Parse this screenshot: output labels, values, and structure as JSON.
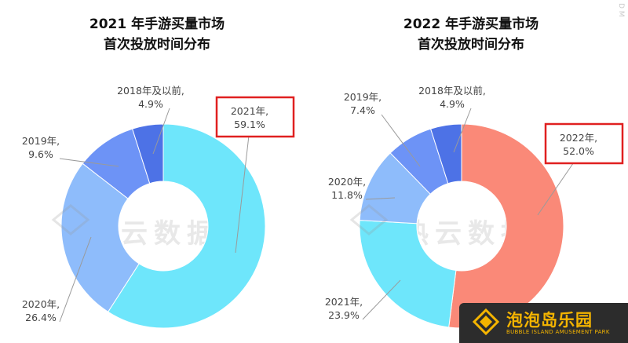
{
  "chart_data": [
    {
      "type": "pie",
      "title": [
        "2021 年手游买量市场",
        "首次投放时间分布"
      ],
      "slices": [
        {
          "label": "2021年,",
          "value_text": "59.1%",
          "value": 59.1,
          "color": "#6ee6fb",
          "highlighted": true
        },
        {
          "label": "2020年,",
          "value_text": "26.4%",
          "value": 26.4,
          "color": "#8ebcfb",
          "highlighted": false
        },
        {
          "label": "2019年,",
          "value_text": "9.6%",
          "value": 9.6,
          "color": "#6d93f6",
          "highlighted": false
        },
        {
          "label": "2018年及以前,",
          "value_text": "4.9%",
          "value": 4.9,
          "color": "#4d72e6",
          "highlighted": false
        }
      ],
      "watermark": "热云数据"
    },
    {
      "type": "pie",
      "title": [
        "2022 年手游买量市场",
        "首次投放时间分布"
      ],
      "slices": [
        {
          "label": "2022年,",
          "value_text": "52.0%",
          "value": 52.0,
          "color": "#fa8978",
          "highlighted": true
        },
        {
          "label": "2021年,",
          "value_text": "23.9%",
          "value": 23.9,
          "color": "#6ee6fb",
          "highlighted": false
        },
        {
          "label": "2020年,",
          "value_text": "11.8%",
          "value": 11.8,
          "color": "#8ebcfb",
          "highlighted": false
        },
        {
          "label": "2019年,",
          "value_text": "7.4%",
          "value": 7.4,
          "color": "#6d93f6",
          "highlighted": false
        },
        {
          "label": "2018年及以前,",
          "value_text": "4.9%",
          "value": 4.9,
          "color": "#4d72e6",
          "highlighted": false
        }
      ],
      "watermark": "热云数据"
    }
  ],
  "logo": {
    "name": "泡泡岛乐园",
    "subtitle": "BUBBLE ISLAND AMUSEMENT PARK"
  },
  "side_mark": "D M"
}
